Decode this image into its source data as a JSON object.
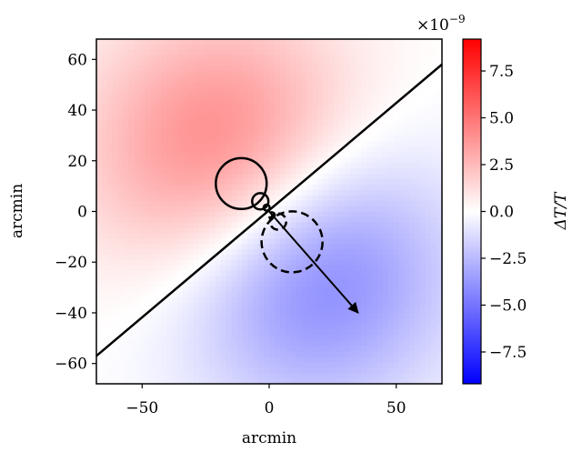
{
  "chart_data": {
    "type": "heatmap",
    "xlabel": "arcmin",
    "ylabel": "arcmin",
    "xlim": [
      -68,
      68
    ],
    "ylim": [
      -68,
      68
    ],
    "xticks": [
      {
        "value": -50,
        "label": "−50"
      },
      {
        "value": 0,
        "label": "0"
      },
      {
        "value": 50,
        "label": "50"
      }
    ],
    "yticks": [
      {
        "value": 60,
        "label": "60"
      },
      {
        "value": 40,
        "label": "40"
      },
      {
        "value": 20,
        "label": "20"
      },
      {
        "value": 0,
        "label": "0"
      },
      {
        "value": -20,
        "label": "−20"
      },
      {
        "value": -40,
        "label": "−40"
      },
      {
        "value": -60,
        "label": "−60"
      }
    ],
    "colorbar": {
      "label": "ΔT/T",
      "exponent_label": "×10",
      "exponent_power": "−9",
      "range": [
        -9.2,
        9.2
      ],
      "colors": {
        "min": "#0000ff",
        "mid": "#ffffff",
        "max": "#ff0000"
      },
      "ticks": [
        {
          "value": 7.5,
          "label": "7.5"
        },
        {
          "value": 5.0,
          "label": "5.0"
        },
        {
          "value": 2.5,
          "label": "2.5"
        },
        {
          "value": 0.0,
          "label": "0.0"
        },
        {
          "value": -2.5,
          "label": "−2.5"
        },
        {
          "value": -5.0,
          "label": "−5.0"
        },
        {
          "value": -7.5,
          "label": "−7.5"
        }
      ]
    },
    "field": {
      "positive_lobe_center": [
        -15,
        20
      ],
      "negative_lobe_center": [
        15,
        -20
      ],
      "lobe_peak": 0.6,
      "lobe_radius": 38
    },
    "line": {
      "from": [
        -68,
        -57
      ],
      "to": [
        68,
        58
      ]
    },
    "arrow": {
      "from": [
        0,
        0
      ],
      "to": [
        35,
        -40
      ]
    },
    "solid_circles": [
      {
        "cx": -11,
        "cy": 11,
        "r": 10
      },
      {
        "cx": -3.5,
        "cy": 4,
        "r": 3.2
      },
      {
        "cx": -1,
        "cy": 1.5,
        "r": 1.2
      }
    ],
    "dashed_circles": [
      {
        "cx": 9,
        "cy": -12,
        "r": 12
      },
      {
        "cx": 3.5,
        "cy": -4,
        "r": 3.2
      },
      {
        "cx": 1,
        "cy": -1.5,
        "r": 1.2
      }
    ]
  }
}
